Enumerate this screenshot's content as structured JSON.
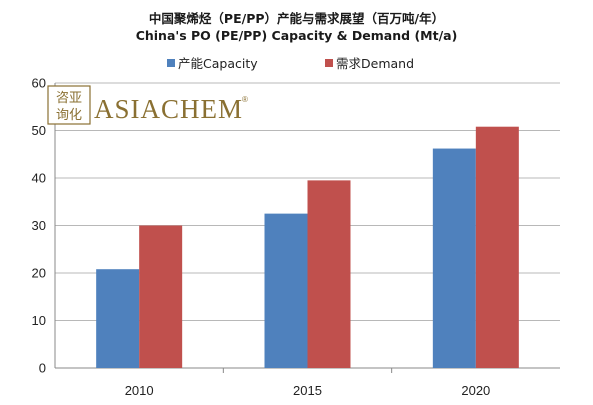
{
  "title": "中国聚烯烃（PE/PP）产能与需求展望（百万吨/年）",
  "subtitle": "China's PO (PE/PP) Capacity & Demand (Mt/a)",
  "logo": {
    "cn_line1": "咨亚",
    "cn_line2": "询化",
    "en": "ASIACHEM",
    "reg": "®"
  },
  "chart_data": {
    "type": "bar",
    "title": "中国聚烯烃（PE/PP）产能与需求展望（百万吨/年）",
    "subtitle": "China's PO (PE/PP) Capacity & Demand (Mt/a)",
    "categories": [
      "2010",
      "2015",
      "2020"
    ],
    "series": [
      {
        "name": "产能Capacity",
        "values": [
          20.8,
          32.5,
          46.2
        ],
        "color": "#4f81bd"
      },
      {
        "name": "需求Demand",
        "values": [
          30.0,
          39.5,
          50.8
        ],
        "color": "#c0504d"
      }
    ],
    "ylim": [
      0,
      60
    ],
    "yticks": [
      0,
      10,
      20,
      30,
      40,
      50,
      60
    ],
    "grid": true,
    "gridColor": "#b8b8b8",
    "legend": "top"
  }
}
